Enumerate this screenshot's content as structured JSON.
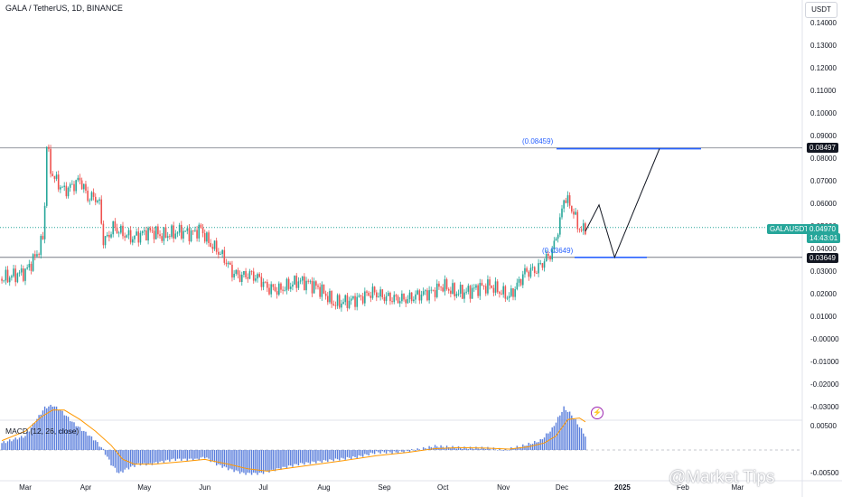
{
  "header": {
    "symbol": "GALA / TetherUS, 1D, BINANCE"
  },
  "macd_header": {
    "label": "MACD (12, 26, close)"
  },
  "currency_label": "USDT",
  "watermark": "@Market Tips",
  "colors": {
    "up": "#26a69a",
    "down": "#ef5350",
    "level": "#2962ff",
    "macd_hist": "#5b7fdc",
    "signal": "#ff9800",
    "current": "#26a69a"
  },
  "y_axis": {
    "ticks": [
      "0.14000",
      "0.13000",
      "0.12000",
      "0.11000",
      "0.10000",
      "0.09000",
      "0.08000",
      "0.07000",
      "0.06000",
      "0.05000",
      "0.04000",
      "0.03000",
      "0.02000",
      "0.01000",
      "-0.00000",
      "-0.01000",
      "-0.02000",
      "-0.03000"
    ],
    "tick_values": [
      0.14,
      0.13,
      0.12,
      0.11,
      0.1,
      0.09,
      0.08,
      0.07,
      0.06,
      0.05,
      0.04,
      0.03,
      0.02,
      0.01,
      0,
      -0.01,
      -0.02,
      -0.03
    ]
  },
  "macd_axis": {
    "ticks": [
      "0.00500",
      "-0.00500"
    ],
    "tick_values": [
      0.005,
      -0.005
    ]
  },
  "x_axis": {
    "labels": [
      {
        "text": "Mar",
        "day": 0,
        "bold": false
      },
      {
        "text": "Apr",
        "day": 31,
        "bold": false
      },
      {
        "text": "May",
        "day": 61,
        "bold": false
      },
      {
        "text": "Jun",
        "day": 92,
        "bold": false
      },
      {
        "text": "Jul",
        "day": 122,
        "bold": false
      },
      {
        "text": "Aug",
        "day": 153,
        "bold": false
      },
      {
        "text": "Sep",
        "day": 184,
        "bold": false
      },
      {
        "text": "Oct",
        "day": 214,
        "bold": false
      },
      {
        "text": "Nov",
        "day": 245,
        "bold": false
      },
      {
        "text": "Dec",
        "day": 275,
        "bold": false
      },
      {
        "text": "2025",
        "day": 306,
        "bold": true
      },
      {
        "text": "Feb",
        "day": 337,
        "bold": false
      },
      {
        "text": "Mar",
        "day": 365,
        "bold": false
      }
    ]
  },
  "price_tags": {
    "top_level": "0.08497",
    "current_symbol": "GALAUSDT",
    "current_price": "0.04970",
    "countdown": "14:43:01",
    "support_level": "0.03649"
  },
  "levels": {
    "target_label": "(0.08459)",
    "target_value": 0.08459,
    "support_label": "(0.03649)",
    "support_value": 0.03649,
    "resistance_value": 0.08497,
    "current_value": 0.0497
  },
  "chart_data": {
    "type": "candlestick",
    "symbol": "GALA / TetherUS",
    "interval": "1D",
    "exchange": "BINANCE",
    "close_path": [
      [
        -12,
        0.027
      ],
      [
        0,
        0.03
      ],
      [
        6,
        0.038
      ],
      [
        9,
        0.045
      ],
      [
        10,
        0.06
      ],
      [
        11,
        0.087
      ],
      [
        13,
        0.075
      ],
      [
        16,
        0.07
      ],
      [
        20,
        0.066
      ],
      [
        24,
        0.068
      ],
      [
        28,
        0.071
      ],
      [
        32,
        0.063
      ],
      [
        36,
        0.063
      ],
      [
        38,
        0.06
      ],
      [
        40,
        0.044
      ],
      [
        42,
        0.045
      ],
      [
        45,
        0.05
      ],
      [
        50,
        0.047
      ],
      [
        55,
        0.045
      ],
      [
        60,
        0.047
      ],
      [
        65,
        0.048
      ],
      [
        70,
        0.046
      ],
      [
        75,
        0.047
      ],
      [
        80,
        0.048
      ],
      [
        85,
        0.047
      ],
      [
        90,
        0.049
      ],
      [
        94,
        0.043
      ],
      [
        98,
        0.04
      ],
      [
        102,
        0.036
      ],
      [
        106,
        0.03
      ],
      [
        110,
        0.028
      ],
      [
        115,
        0.029
      ],
      [
        120,
        0.027
      ],
      [
        124,
        0.023
      ],
      [
        130,
        0.022
      ],
      [
        135,
        0.024
      ],
      [
        140,
        0.026
      ],
      [
        145,
        0.025
      ],
      [
        150,
        0.023
      ],
      [
        155,
        0.019
      ],
      [
        158,
        0.016
      ],
      [
        165,
        0.017
      ],
      [
        170,
        0.018
      ],
      [
        178,
        0.021
      ],
      [
        184,
        0.019
      ],
      [
        190,
        0.018
      ],
      [
        196,
        0.018
      ],
      [
        202,
        0.02
      ],
      [
        208,
        0.021
      ],
      [
        214,
        0.024
      ],
      [
        220,
        0.021
      ],
      [
        226,
        0.021
      ],
      [
        232,
        0.023
      ],
      [
        238,
        0.024
      ],
      [
        244,
        0.021
      ],
      [
        248,
        0.019
      ],
      [
        252,
        0.024
      ],
      [
        256,
        0.03
      ],
      [
        262,
        0.031
      ],
      [
        266,
        0.035
      ],
      [
        270,
        0.039
      ],
      [
        274,
        0.052
      ],
      [
        276,
        0.063
      ],
      [
        279,
        0.06
      ],
      [
        281,
        0.056
      ],
      [
        283,
        0.051
      ],
      [
        285,
        0.048
      ],
      [
        287,
        0.0497
      ]
    ],
    "projection": [
      [
        287,
        0.048
      ],
      [
        294,
        0.0597
      ],
      [
        302,
        0.0365
      ],
      [
        325,
        0.0846
      ]
    ],
    "macd": {
      "hist_path": [
        [
          -12,
          0.0015
        ],
        [
          0,
          0.003
        ],
        [
          5,
          0.006
        ],
        [
          10,
          0.009
        ],
        [
          14,
          0.0095
        ],
        [
          18,
          0.0085
        ],
        [
          24,
          0.006
        ],
        [
          30,
          0.004
        ],
        [
          36,
          0.002
        ],
        [
          40,
          0
        ],
        [
          44,
          -0.003
        ],
        [
          48,
          -0.005
        ],
        [
          52,
          -0.004
        ],
        [
          58,
          -0.003
        ],
        [
          64,
          -0.003
        ],
        [
          70,
          -0.0025
        ],
        [
          76,
          -0.002
        ],
        [
          82,
          -0.002
        ],
        [
          88,
          -0.002
        ],
        [
          92,
          -0.0015
        ],
        [
          98,
          -0.003
        ],
        [
          104,
          -0.004
        ],
        [
          112,
          -0.005
        ],
        [
          120,
          -0.005
        ],
        [
          130,
          -0.004
        ],
        [
          140,
          -0.003
        ],
        [
          150,
          -0.0025
        ],
        [
          160,
          -0.002
        ],
        [
          170,
          -0.0015
        ],
        [
          180,
          -0.0005
        ],
        [
          190,
          -0.0005
        ],
        [
          200,
          0
        ],
        [
          210,
          0.0008
        ],
        [
          218,
          0.0006
        ],
        [
          226,
          0.0004
        ],
        [
          236,
          0.0004
        ],
        [
          246,
          0
        ],
        [
          256,
          0.001
        ],
        [
          264,
          0.002
        ],
        [
          270,
          0.0045
        ],
        [
          276,
          0.009
        ],
        [
          280,
          0.0075
        ],
        [
          284,
          0.005
        ],
        [
          287,
          0.003
        ]
      ],
      "signal_path": [
        [
          -12,
          0.002
        ],
        [
          0,
          0.004
        ],
        [
          8,
          0.007
        ],
        [
          14,
          0.0085
        ],
        [
          20,
          0.0085
        ],
        [
          28,
          0.0065
        ],
        [
          36,
          0.004
        ],
        [
          44,
          0.001
        ],
        [
          50,
          -0.002
        ],
        [
          56,
          -0.003
        ],
        [
          66,
          -0.003
        ],
        [
          80,
          -0.0025
        ],
        [
          92,
          -0.002
        ],
        [
          104,
          -0.003
        ],
        [
          114,
          -0.004
        ],
        [
          124,
          -0.0045
        ],
        [
          136,
          -0.0038
        ],
        [
          150,
          -0.003
        ],
        [
          164,
          -0.0022
        ],
        [
          180,
          -0.0012
        ],
        [
          196,
          -0.0005
        ],
        [
          210,
          0.0003
        ],
        [
          222,
          0.0005
        ],
        [
          236,
          0.0004
        ],
        [
          248,
          0.0002
        ],
        [
          258,
          0.0007
        ],
        [
          266,
          0.0015
        ],
        [
          272,
          0.003
        ],
        [
          278,
          0.0065
        ],
        [
          284,
          0.0068
        ],
        [
          287,
          0.006
        ]
      ]
    }
  }
}
